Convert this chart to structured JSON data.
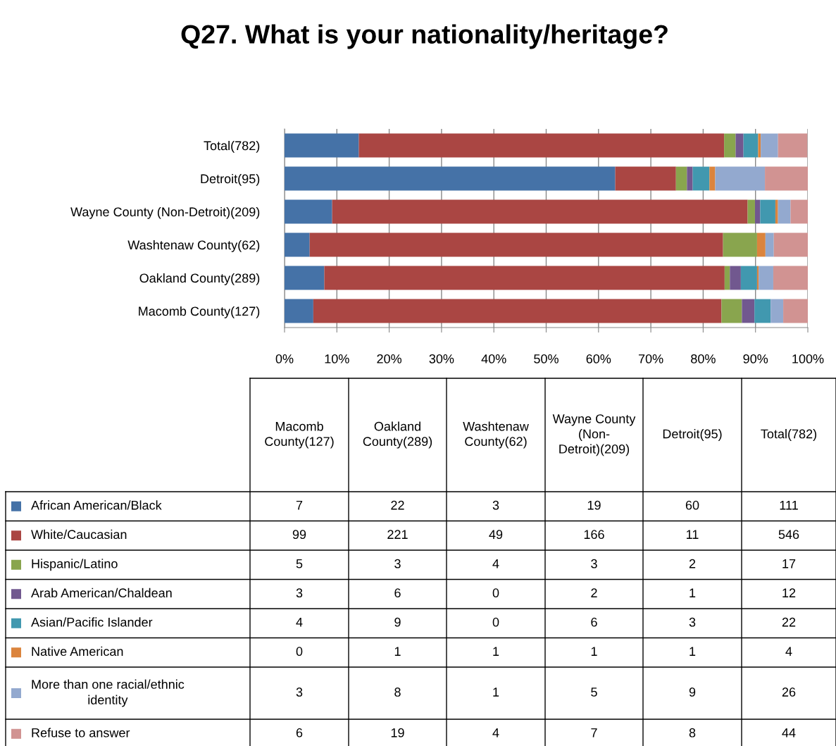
{
  "chart_data": [
    {
      "type": "bar",
      "orientation": "horizontal",
      "stacked": true,
      "title": "Q27. What is your nationality/heritage?",
      "categories": [
        "Total(782)",
        "Detroit(95)",
        "Wayne County (Non-Detroit)(209)",
        "Washtenaw County(62)",
        "Oakland County(289)",
        "Macomb County(127)"
      ],
      "series": [
        {
          "color": "#4572a7",
          "values": [
            14.2,
            63.2,
            9.1,
            4.8,
            7.6,
            5.5
          ]
        },
        {
          "color": "#aa4643",
          "values": [
            69.8,
            11.6,
            79.4,
            79.0,
            76.5,
            78.0
          ]
        },
        {
          "color": "#89a54e",
          "values": [
            2.2,
            2.1,
            1.4,
            6.5,
            1.0,
            3.9
          ]
        },
        {
          "color": "#71588f",
          "values": [
            1.5,
            1.1,
            1.0,
            0,
            2.1,
            2.4
          ]
        },
        {
          "color": "#4198af",
          "values": [
            2.8,
            3.2,
            2.9,
            0,
            3.1,
            3.1
          ]
        },
        {
          "color": "#db843d",
          "values": [
            0.5,
            1.1,
            0.5,
            1.6,
            0.3,
            0
          ]
        },
        {
          "color": "#93a9cf",
          "values": [
            3.3,
            9.5,
            2.4,
            1.6,
            2.8,
            2.4
          ]
        },
        {
          "color": "#d19392",
          "values": [
            5.6,
            8.4,
            3.3,
            6.5,
            6.6,
            4.7
          ]
        }
      ],
      "xlim": [
        0,
        100
      ],
      "xticks": [
        {
          "value": 0,
          "label": "0%"
        },
        {
          "value": 10,
          "label": "10%"
        },
        {
          "value": 20,
          "label": "20%"
        },
        {
          "value": 30,
          "label": "30%"
        },
        {
          "value": 40,
          "label": "40%"
        },
        {
          "value": 50,
          "label": "50%"
        },
        {
          "value": 60,
          "label": "60%"
        },
        {
          "value": 70,
          "label": "70%"
        },
        {
          "value": 80,
          "label": "80%"
        },
        {
          "value": 90,
          "label": "90%"
        },
        {
          "value": 100,
          "label": "100%"
        }
      ],
      "grid": "x"
    },
    {
      "type": "other",
      "data_labels": true,
      "legend": "left",
      "categories": [
        "Macomb County(127)",
        "Oakland County(289)",
        "Washtenaw County(62)",
        "Wayne County (Non-Detroit)(209)",
        "Detroit(95)",
        "Total(782)"
      ],
      "series": [
        {
          "name": "African American/Black",
          "color": "#4572a7",
          "values": [
            7,
            22,
            3,
            19,
            60,
            111
          ]
        },
        {
          "name": "White/Caucasian",
          "color": "#aa4643",
          "values": [
            99,
            221,
            49,
            166,
            11,
            546
          ]
        },
        {
          "name": "Hispanic/Latino",
          "color": "#89a54e",
          "values": [
            5,
            3,
            4,
            3,
            2,
            17
          ]
        },
        {
          "name": "Arab American/Chaldean",
          "color": "#71588f",
          "values": [
            3,
            6,
            0,
            2,
            1,
            12
          ]
        },
        {
          "name": "Asian/Pacific Islander",
          "color": "#4198af",
          "values": [
            4,
            9,
            0,
            6,
            3,
            22
          ]
        },
        {
          "name": "Native American",
          "color": "#db843d",
          "values": [
            0,
            1,
            1,
            1,
            1,
            4
          ]
        },
        {
          "name": "More than one racial/ethnic identity",
          "color": "#93a9cf",
          "values": [
            3,
            8,
            1,
            5,
            9,
            26
          ]
        },
        {
          "name": "Refuse to answer",
          "color": "#d19392",
          "values": [
            6,
            19,
            4,
            7,
            8,
            44
          ]
        }
      ]
    }
  ]
}
